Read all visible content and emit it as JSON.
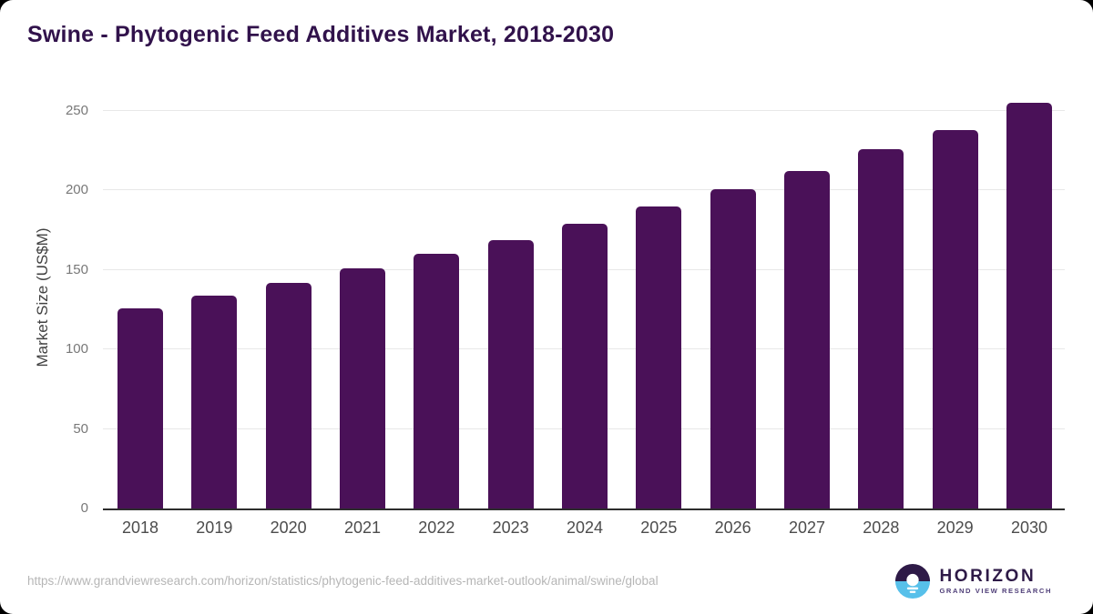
{
  "window": {
    "background": "#000000",
    "card_background": "#ffffff"
  },
  "title": "Swine - Phytogenic Feed Additives Market, 2018-2030",
  "chart_data": {
    "type": "bar",
    "title": "Swine - Phytogenic Feed Additives Market, 2018-2030",
    "categories": [
      "2018",
      "2019",
      "2020",
      "2021",
      "2022",
      "2023",
      "2024",
      "2025",
      "2026",
      "2027",
      "2028",
      "2029",
      "2030"
    ],
    "values": [
      126,
      134,
      142,
      151,
      160,
      169,
      179,
      190,
      201,
      212,
      226,
      238,
      255
    ],
    "xlabel": "",
    "ylabel": "Market Size (US$M)",
    "ylim": [
      0,
      250
    ],
    "yticks": [
      0,
      50,
      100,
      150,
      200,
      250
    ],
    "grid": "horizontal-light",
    "legend": "none",
    "bar_color": "#4a1158"
  },
  "footer": {
    "source_url": "https://www.grandviewresearch.com/horizon/statistics/phytogenic-feed-additives-market-outlook/animal/swine/global",
    "logo": {
      "brand": "HORIZON",
      "tagline": "GRAND VIEW RESEARCH",
      "mark_top_color": "#2e1a47",
      "mark_bottom_color": "#57c0ea"
    }
  },
  "colors": {
    "title_text": "#31124b",
    "bar": "#4a1158",
    "axis_line": "#2d2d2d",
    "gridline": "#e8e8e8",
    "y_tick_text": "#787878",
    "x_tick_text": "#4c4c4c",
    "axis_title_text": "#414141",
    "url_text": "#b6b6b6"
  }
}
